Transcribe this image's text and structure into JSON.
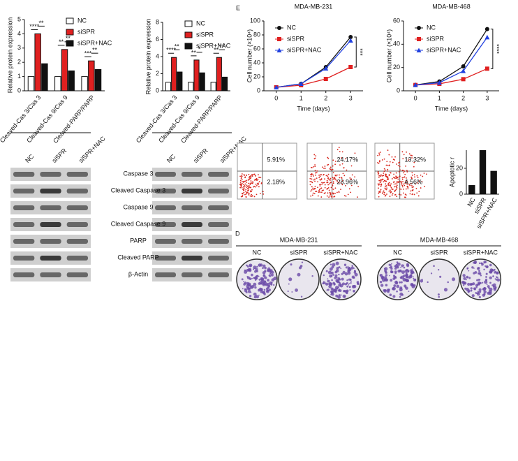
{
  "chart_data": [
    {
      "type": "bar",
      "ylabel": "Relative protein expression",
      "categories": [
        "Cleaved-Cas 3/Cas 3",
        "Cleaved-Cas 9/Cas 9",
        "Cleaved-PARP/PARP"
      ],
      "series": [
        {
          "name": "NC",
          "color": "#ffffff",
          "values": [
            1,
            1,
            1
          ]
        },
        {
          "name": "siSPR",
          "color": "#e02020",
          "values": [
            4,
            2.9,
            2.1
          ]
        },
        {
          "name": "siSPR+NAC",
          "color": "#111111",
          "values": [
            1.9,
            1.4,
            1.5
          ]
        }
      ],
      "significance": [
        [
          "****",
          "**"
        ],
        [
          "**",
          "**"
        ],
        [
          "***",
          "**"
        ]
      ],
      "ylim": [
        0,
        5
      ],
      "yticks": [
        0,
        1,
        2,
        3,
        4,
        5
      ]
    },
    {
      "type": "bar",
      "ylabel": "Relative protein expression",
      "categories": [
        "Cleaved-Cas 3/Cas 3",
        "Cleaved-Cas 9/Cas 9",
        "Cleaved-PARP/PARP"
      ],
      "series": [
        {
          "name": "NC",
          "color": "#ffffff",
          "values": [
            1,
            1,
            1
          ]
        },
        {
          "name": "siSPR",
          "color": "#e02020",
          "values": [
            3.9,
            3.6,
            3.9
          ]
        },
        {
          "name": "siSPR+NAC",
          "color": "#111111",
          "values": [
            2.2,
            2.1,
            1.6
          ]
        }
      ],
      "significance": [
        [
          "****",
          "**"
        ],
        [
          "**",
          "*"
        ],
        [
          "**",
          "**"
        ]
      ],
      "ylim": [
        0,
        8
      ],
      "yticks": [
        0,
        2,
        4,
        6,
        8
      ]
    },
    {
      "type": "line",
      "panel": "E",
      "title": "MDA-MB-231",
      "xlabel": "Time (days)",
      "ylabel": "Cell number (×10⁴)",
      "x": [
        0,
        1,
        2,
        3
      ],
      "series": [
        {
          "name": "NC",
          "color": "#111111",
          "values": [
            5,
            10,
            34,
            77
          ]
        },
        {
          "name": "siSPR",
          "color": "#e02020",
          "values": [
            5,
            8,
            17,
            34
          ]
        },
        {
          "name": "siSPR+NAC",
          "color": "#2040e0",
          "values": [
            5,
            10,
            32,
            72
          ]
        }
      ],
      "annotation": "***",
      "xlim": [
        -0.5,
        3.5
      ],
      "xticks": [
        0,
        1,
        2,
        3
      ],
      "ylim": [
        0,
        100
      ],
      "yticks": [
        0,
        20,
        40,
        60,
        80,
        100
      ]
    },
    {
      "type": "line",
      "title": "MDA-MB-468",
      "xlabel": "Time (days)",
      "ylabel": "Cell number (×10⁴)",
      "x": [
        0,
        1,
        2,
        3
      ],
      "series": [
        {
          "name": "NC",
          "color": "#111111",
          "values": [
            5,
            8,
            21,
            53
          ]
        },
        {
          "name": "siSPR",
          "color": "#e02020",
          "values": [
            5,
            6,
            10,
            19
          ]
        },
        {
          "name": "siSPR+NAC",
          "color": "#2040e0",
          "values": [
            5,
            7,
            17,
            46
          ]
        }
      ],
      "annotation": "****",
      "xlim": [
        -0.5,
        3.5
      ],
      "xticks": [
        0,
        1,
        2,
        3
      ],
      "ylim": [
        0,
        60
      ],
      "yticks": [
        0,
        20,
        40,
        60
      ]
    },
    {
      "type": "simplebar",
      "ylabel": "Apoptotic r",
      "categories": [
        "NC",
        "siSPR",
        "siSPR+NAC"
      ],
      "values": [
        7,
        34,
        18
      ],
      "color": "#111111",
      "ylim": [
        0,
        34
      ],
      "yticks": [
        0,
        20
      ]
    }
  ],
  "blots": [
    {
      "columns": [
        "NC",
        "siSPR",
        "siSPR+NAC"
      ]
    },
    {
      "columns": [
        "NC",
        "siSPR",
        "siSPR+NAC"
      ],
      "rows": [
        "Caspase 3",
        "Cleaved Caspase 3",
        "Caspase 9",
        "Cleaved Caspase 9",
        "PARP",
        "Cleaved PARP",
        "β-Actin"
      ]
    }
  ],
  "flow": [
    [
      "5.91%",
      "2.18%"
    ],
    [
      "24.17%",
      "28.96%"
    ],
    [
      "13.32%",
      "4.56%"
    ]
  ],
  "colony": {
    "panel": "D",
    "groups": [
      {
        "title": "MDA-MB-231",
        "labels": [
          "NC",
          "siSPR",
          "siSPR+NAC"
        ]
      },
      {
        "title": "MDA-MB-468",
        "labels": [
          "NC",
          "siSPR",
          "siSPR+NAC"
        ]
      }
    ]
  }
}
